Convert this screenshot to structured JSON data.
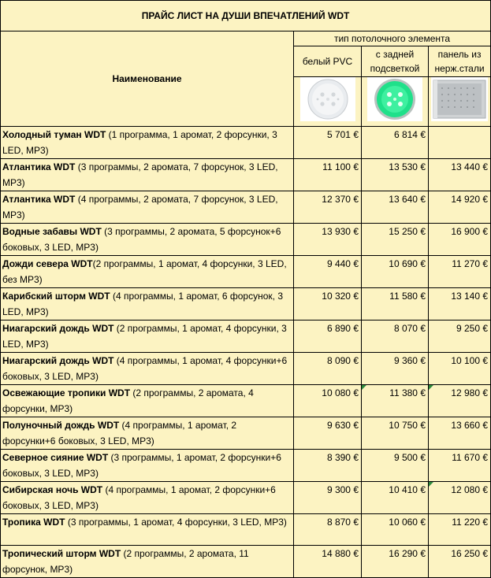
{
  "title": "ПРАЙС ЛИСТ НА ДУШИ ВПЕЧАТЛЕНИЙ WDT",
  "header": {
    "name_col": "Наименование",
    "group": "тип потолочного элемента",
    "col1": "белый PVC",
    "col2": "с задней подсветкой",
    "col3": "панель из нерж.стали"
  },
  "images": {
    "col1_icon": "white-pvc-ceiling-element-image",
    "col2_icon": "backlit-green-ceiling-element-image",
    "col3_icon": "stainless-steel-panel-image"
  },
  "rows": [
    {
      "name": "Холодный туман WDT",
      "desc": " (1 программа, 1 аромат, 2 форсунки, 3 LED, MP3)",
      "p1": "5 701 €",
      "p2": "6 814 €",
      "p3": ""
    },
    {
      "name": "Атлантика WDT",
      "desc": " (3 программы, 2 аромата, 7 форсунок, 3 LED, MP3)",
      "p1": "11 100 €",
      "p2": "13 530 €",
      "p3": "13 440 €"
    },
    {
      "name": "Атлантика WDT",
      "desc": " (4 программы, 2 аромата, 7 форсунок, 3 LED, MP3)",
      "p1": "12 370 €",
      "p2": "13 640 €",
      "p3": "14 920 €"
    },
    {
      "name": "Водные забавы WDT",
      "desc": " (3 программы, 2 аромата, 5 форсунок+6 боковых, 3 LED, MP3)",
      "p1": "13 930 €",
      "p2": "15 250 €",
      "p3": "16 900 €"
    },
    {
      "name": "Дожди севера WDT",
      "desc": "(2 программы, 1 аромат, 4 форсунки, 3 LED, без MP3)",
      "p1": "9 440 €",
      "p2": "10 690 €",
      "p3": "11 270 €"
    },
    {
      "name": "Карибский шторм WDT",
      "desc": " (4 программы, 1 аромат, 6 форсунок, 3 LED, MP3)",
      "p1": "10 320 €",
      "p2": "11 580 €",
      "p3": "13 140 €"
    },
    {
      "name": "Ниагарский дождь WDT",
      "desc": " (2 программы, 1 аромат, 4 форсунки, 3 LED, MP3)",
      "p1": "6 890 €",
      "p2": "8 070 €",
      "p3": "9 250 €"
    },
    {
      "name": "Ниагарский дождь WDT",
      "desc": " (4 программы, 1 аромат, 4 форсунки+6 боковых, 3 LED, MP3)",
      "p1": "8 090 €",
      "p2": "9 360 €",
      "p3": "10 100 €"
    },
    {
      "name": "Освежающие тропики WDT",
      "desc": " (2 программы, 2 аромата, 4 форсунки, MP3)",
      "p1": "10 080 €",
      "p2": "11 380 €",
      "p3": "12 980 €"
    },
    {
      "name": "Полуночный дождь WDT",
      "desc": " (4 программы, 1 аромат, 2 форсунки+6 боковых, 3 LED, MP3)",
      "p1": "9 630 €",
      "p2": "10 750 €",
      "p3": "13 660 €"
    },
    {
      "name": "Северное сияние WDT",
      "desc": " (3 программы, 1 аромат, 2 форсунки+6 боковых, 3 LED, MP3)",
      "p1": "8 390 €",
      "p2": "9 500 €",
      "p3": "11 670 €"
    },
    {
      "name": "Сибирская ночь WDT",
      "desc": " (4 программы, 1 аромат, 2 форсунки+6 боковых, 3 LED, MP3)",
      "p1": "9 300 €",
      "p2": "10 410 €",
      "p3": "12 080 €"
    },
    {
      "name": "Тропика WDT",
      "desc": " (3 программы, 1 аромат, 4 форсунки, 3 LED, MP3)",
      "p1": "8 870 €",
      "p2": "10 060 €",
      "p3": "11 220 €"
    },
    {
      "name": "Тропический шторм WDT",
      "desc": " (2 программы, 2 аромата, 11 форсунок, MP3)",
      "p1": "14 880 €",
      "p2": "16 290 €",
      "p3": "16 250 €"
    }
  ]
}
